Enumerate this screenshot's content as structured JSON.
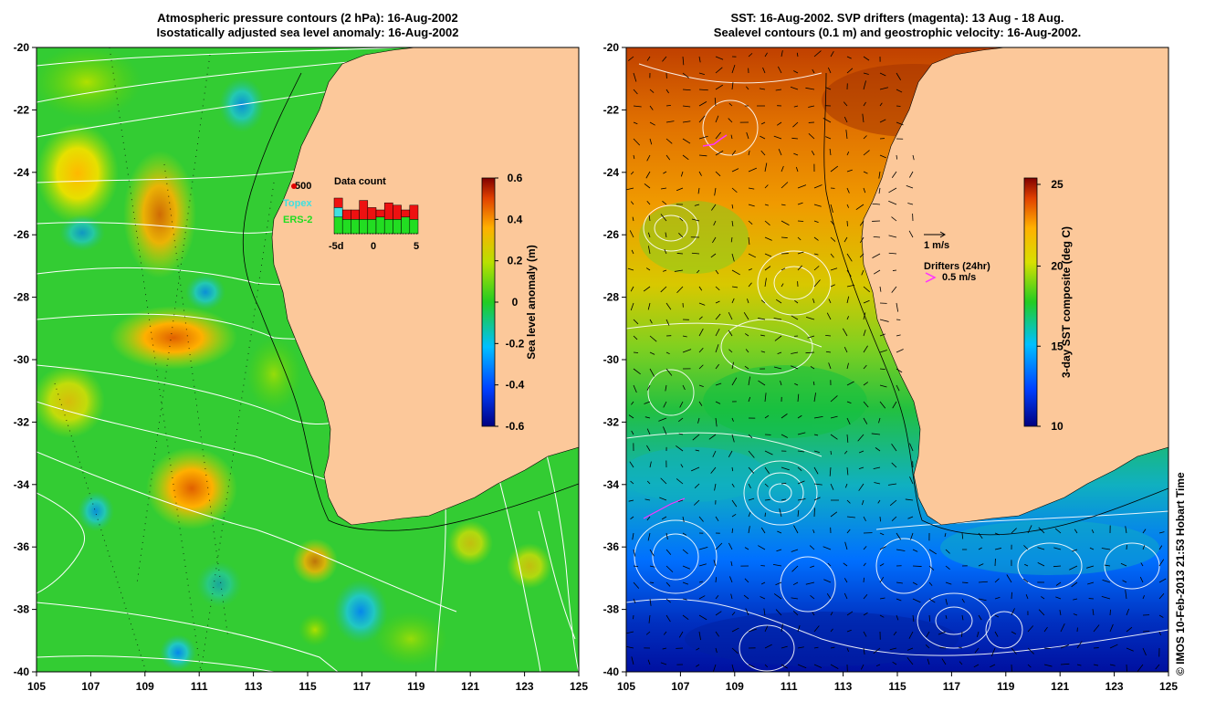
{
  "left_panel": {
    "title_line1": "Atmospheric pressure contours (2 hPa): 16-Aug-2002",
    "title_line2": "Isostatically adjusted sea level anomaly: 16-Aug-2002",
    "y_ticks": [
      "-20",
      "-22",
      "-24",
      "-26",
      "-28",
      "-30",
      "-32",
      "-34",
      "-36",
      "-38",
      "-40"
    ],
    "x_ticks": [
      "105",
      "107",
      "109",
      "111",
      "113",
      "115",
      "117",
      "119",
      "121",
      "123",
      "125"
    ],
    "colorbar": {
      "label": "Sea level anomaly (m)",
      "ticks": [
        "0.6",
        "0.4",
        "0.2",
        "0",
        "-0.2",
        "-0.4",
        "-0.6"
      ]
    },
    "data_count": {
      "title": "Data count",
      "scale_label": "500",
      "legend": [
        {
          "name": "Topex",
          "color": "#40e0e0"
        },
        {
          "name": "ERS-2",
          "color": "#22dd22"
        }
      ],
      "x_labels": [
        "-5d",
        "0",
        "5"
      ],
      "bars": [
        {
          "total": 0.75,
          "ers": 0.35,
          "topex": 0.2
        },
        {
          "total": 0.5,
          "ers": 0.3,
          "topex": 0.0
        },
        {
          "total": 0.5,
          "ers": 0.3,
          "topex": 0.0
        },
        {
          "total": 0.7,
          "ers": 0.3,
          "topex": 0.0
        },
        {
          "total": 0.55,
          "ers": 0.3,
          "topex": 0.0
        },
        {
          "total": 0.5,
          "ers": 0.35,
          "topex": 0.0
        },
        {
          "total": 0.65,
          "ers": 0.3,
          "topex": 0.0
        },
        {
          "total": 0.6,
          "ers": 0.3,
          "topex": 0.0
        },
        {
          "total": 0.5,
          "ers": 0.35,
          "topex": 0.0
        },
        {
          "total": 0.6,
          "ers": 0.3,
          "topex": 0.0
        }
      ]
    }
  },
  "right_panel": {
    "title_line1": "SST: 16-Aug-2002. SVP drifters (magenta): 13 Aug - 18 Aug.",
    "title_line2": "Sealevel contours (0.1 m) and geostrophic velocity: 16-Aug-2002.",
    "y_ticks": [
      "-20",
      "-22",
      "-24",
      "-26",
      "-28",
      "-30",
      "-32",
      "-34",
      "-36",
      "-38",
      "-40"
    ],
    "x_ticks": [
      "105",
      "107",
      "109",
      "111",
      "113",
      "115",
      "117",
      "119",
      "121",
      "123",
      "125"
    ],
    "colorbar": {
      "label": "3-day SST composite (deg C)",
      "ticks": [
        "25",
        "20",
        "15",
        "10"
      ]
    },
    "velocity_legend": "1 m/s",
    "drifter_legend_title": "Drifters (24hr)",
    "drifter_legend_value": "0.5 m/s"
  },
  "copyright": "© IMOS 10-Feb-2013 21:53 Hobart Time",
  "colors": {
    "land": "#fcc89a",
    "ocean_green": "#33cc33",
    "magenta": "#ff33ff"
  }
}
